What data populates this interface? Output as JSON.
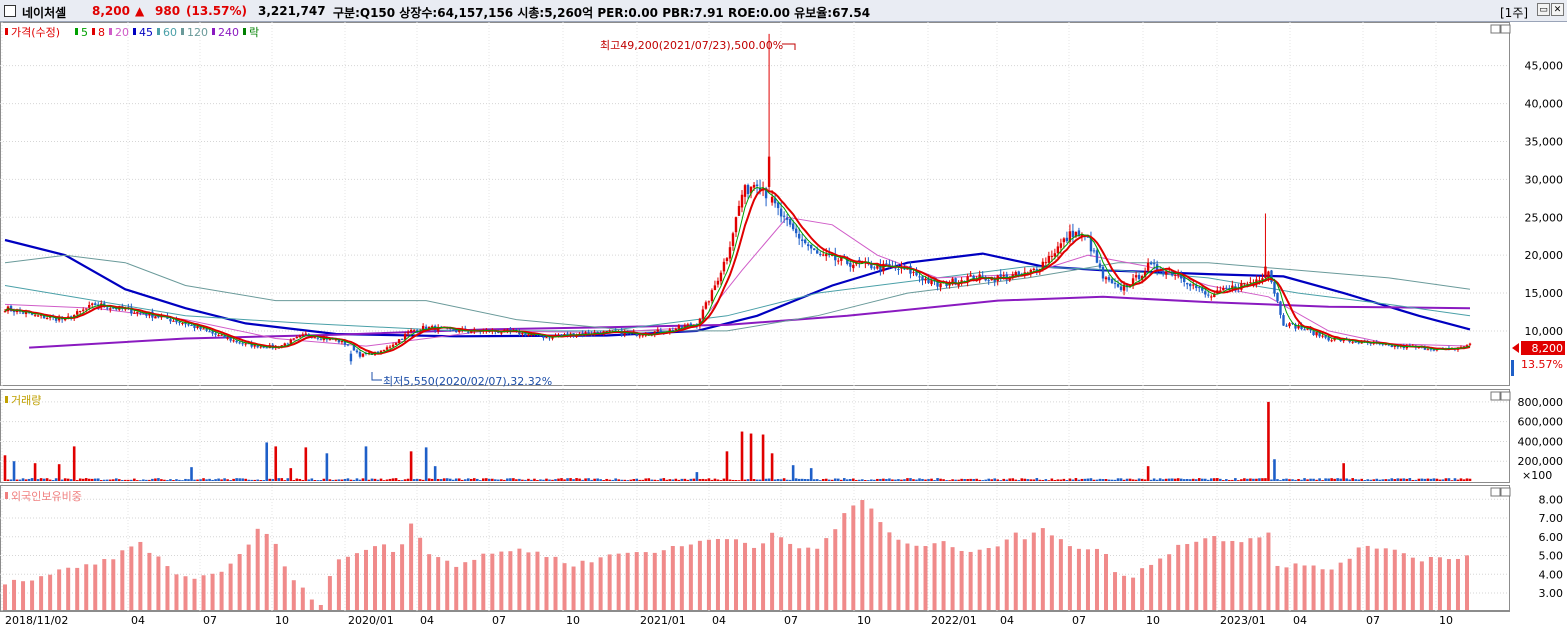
{
  "header": {
    "stock_name": "네이처셀",
    "price": "8,200",
    "change_arrow": "▲",
    "change": "980",
    "change_pct": "(13.57%)",
    "volume": "3,221,747",
    "info": "구분:Q150 상장수:64,157,156 시총:5,260억 PER:0.00 PBR:7.91 ROE:0.00 유보율:67.54",
    "period_button": "[1주]",
    "colors": {
      "up": "#e00000",
      "down": "#1e5fc8"
    }
  },
  "chart_data": [
    {
      "type": "candlestick",
      "panel": "price",
      "legend": [
        {
          "label": "가격(수정)",
          "color": "#e00000"
        },
        {
          "label": "5",
          "color": "#00a000"
        },
        {
          "label": "8",
          "color": "#e00000"
        },
        {
          "label": "20",
          "color": "#d05cc8"
        },
        {
          "label": "45",
          "color": "#0000c0"
        },
        {
          "label": "60",
          "color": "#4aa0a8"
        },
        {
          "label": "120",
          "color": "#6a9a9a"
        },
        {
          "label": "240",
          "color": "#8a1ac0"
        },
        {
          "label": "락",
          "color": "#008000"
        }
      ],
      "x_ticks": [
        "2018/11/02",
        "04",
        "07",
        "10",
        "2020/01",
        "04",
        "07",
        "10",
        "2021/01",
        "04",
        "07",
        "10",
        "2022/01",
        "04",
        "07",
        "10",
        "2023/01",
        "04",
        "07",
        "10"
      ],
      "y_ticks": [
        "45,000",
        "40,000",
        "35,000",
        "30,000",
        "25,000",
        "20,000",
        "15,000",
        "10,000"
      ],
      "ylim": [
        3000,
        50500
      ],
      "current_price_label": "8,200",
      "current_change_label": "13.57%",
      "annotations": {
        "high": "최고49,200(2021/07/23),500.00%",
        "low": "최저5,550(2020/02/07),32.32%"
      },
      "close_anchors": [
        [
          0,
          13000
        ],
        [
          10,
          12000
        ],
        [
          20,
          11500
        ],
        [
          30,
          13500
        ],
        [
          40,
          12800
        ],
        [
          50,
          12000
        ],
        [
          60,
          11000
        ],
        [
          70,
          9500
        ],
        [
          80,
          8200
        ],
        [
          90,
          7800
        ],
        [
          100,
          9500
        ],
        [
          110,
          8800
        ],
        [
          115,
          8000
        ],
        [
          118,
          6800
        ],
        [
          125,
          7200
        ],
        [
          135,
          10000
        ],
        [
          140,
          10500
        ],
        [
          150,
          10000
        ],
        [
          160,
          10000
        ],
        [
          170,
          9800
        ],
        [
          180,
          9200
        ],
        [
          190,
          9600
        ],
        [
          200,
          9800
        ],
        [
          210,
          9600
        ],
        [
          220,
          10000
        ],
        [
          230,
          11000
        ],
        [
          235,
          15000
        ],
        [
          240,
          20000
        ],
        [
          245,
          28000
        ],
        [
          250,
          30000
        ],
        [
          255,
          27000
        ],
        [
          260,
          24000
        ],
        [
          265,
          22000
        ],
        [
          270,
          20000
        ],
        [
          280,
          19000
        ],
        [
          290,
          18500
        ],
        [
          300,
          18000
        ],
        [
          310,
          16000
        ],
        [
          320,
          17000
        ],
        [
          330,
          17000
        ],
        [
          340,
          17500
        ],
        [
          345,
          19000
        ],
        [
          350,
          21000
        ],
        [
          355,
          23000
        ],
        [
          360,
          22000
        ],
        [
          365,
          17000
        ],
        [
          370,
          15500
        ],
        [
          375,
          16500
        ],
        [
          380,
          18500
        ],
        [
          390,
          17500
        ],
        [
          400,
          14500
        ],
        [
          410,
          16000
        ],
        [
          415,
          16500
        ],
        [
          420,
          18000
        ],
        [
          425,
          11000
        ],
        [
          430,
          10500
        ],
        [
          440,
          9000
        ],
        [
          450,
          8500
        ],
        [
          460,
          8000
        ],
        [
          470,
          7800
        ],
        [
          480,
          7500
        ],
        [
          487,
          8200
        ]
      ],
      "moving_averages": [
        {
          "name": "45",
          "color": "#0000c0",
          "width": 2.2,
          "points": [
            [
              0,
              22000
            ],
            [
              20,
              20000
            ],
            [
              40,
              15500
            ],
            [
              60,
              13000
            ],
            [
              80,
              11000
            ],
            [
              110,
              9600
            ],
            [
              150,
              9300
            ],
            [
              200,
              9400
            ],
            [
              230,
              10000
            ],
            [
              250,
              12000
            ],
            [
              275,
              16000
            ],
            [
              300,
              19000
            ],
            [
              325,
              20200
            ],
            [
              345,
              18500
            ],
            [
              365,
              18000
            ],
            [
              400,
              17500
            ],
            [
              425,
              17200
            ],
            [
              445,
              15000
            ],
            [
              470,
              12000
            ],
            [
              487,
              10200
            ]
          ]
        },
        {
          "name": "240",
          "color": "#8a1ac0",
          "width": 2.0,
          "points": [
            [
              8,
              7800
            ],
            [
              60,
              9000
            ],
            [
              110,
              9500
            ],
            [
              160,
              10200
            ],
            [
              200,
              10500
            ],
            [
              240,
              10800
            ],
            [
              280,
              12000
            ],
            [
              330,
              14000
            ],
            [
              365,
              14500
            ],
            [
              400,
              13800
            ],
            [
              440,
              13200
            ],
            [
              487,
              13000
            ]
          ]
        },
        {
          "name": "120",
          "color": "#6a9a9a",
          "width": 1.0,
          "points": [
            [
              0,
              19000
            ],
            [
              20,
              20000
            ],
            [
              40,
              19000
            ],
            [
              60,
              16000
            ],
            [
              90,
              14000
            ],
            [
              140,
              14000
            ],
            [
              170,
              11500
            ],
            [
              210,
              10000
            ],
            [
              240,
              10000
            ],
            [
              270,
              12000
            ],
            [
              300,
              15000
            ],
            [
              340,
              17000
            ],
            [
              370,
              19000
            ],
            [
              400,
              19000
            ],
            [
              430,
              18000
            ],
            [
              460,
              17000
            ],
            [
              487,
              15500
            ]
          ]
        },
        {
          "name": "60",
          "color": "#4aa0a8",
          "width": 1.0,
          "points": [
            [
              0,
              16000
            ],
            [
              30,
              14000
            ],
            [
              60,
              12000
            ],
            [
              100,
              11000
            ],
            [
              150,
              10000
            ],
            [
              200,
              10000
            ],
            [
              240,
              12000
            ],
            [
              270,
              15000
            ],
            [
              310,
              17000
            ],
            [
              340,
              18500
            ],
            [
              370,
              18000
            ],
            [
              400,
              17000
            ],
            [
              430,
              15000
            ],
            [
              460,
              13500
            ],
            [
              487,
              12000
            ]
          ]
        },
        {
          "name": "20",
          "color": "#d05cc8",
          "width": 1.0,
          "points": [
            [
              0,
              13500
            ],
            [
              30,
              13000
            ],
            [
              60,
              11500
            ],
            [
              90,
              9000
            ],
            [
              120,
              8000
            ],
            [
              160,
              10000
            ],
            [
              200,
              9800
            ],
            [
              230,
              10500
            ],
            [
              245,
              18000
            ],
            [
              260,
              25000
            ],
            [
              275,
              24000
            ],
            [
              290,
              20000
            ],
            [
              310,
              17000
            ],
            [
              340,
              17500
            ],
            [
              360,
              20000
            ],
            [
              380,
              18500
            ],
            [
              400,
              16000
            ],
            [
              420,
              14500
            ],
            [
              440,
              10000
            ],
            [
              460,
              8300
            ],
            [
              487,
              8000
            ]
          ]
        }
      ],
      "special_candles": [
        {
          "i": 254,
          "open": 29000,
          "close": 33000,
          "high": 49200,
          "low": 28500
        },
        {
          "i": 115,
          "open": 7000,
          "close": 6000,
          "high": 7400,
          "low": 5550
        },
        {
          "i": 419,
          "open": 17000,
          "close": 18500,
          "high": 25500,
          "low": 16500
        }
      ]
    },
    {
      "type": "bar",
      "panel": "volume",
      "title": "거래량",
      "y_ticks": [
        "800,000",
        "600,000",
        "400,000",
        "200,000"
      ],
      "ylim": [
        0,
        900000
      ],
      "unit_label": "×100",
      "spikes": [
        [
          0,
          260000
        ],
        [
          3,
          200000
        ],
        [
          10,
          180000
        ],
        [
          18,
          170000
        ],
        [
          23,
          350000
        ],
        [
          62,
          140000
        ],
        [
          87,
          390000
        ],
        [
          90,
          350000
        ],
        [
          95,
          130000
        ],
        [
          100,
          340000
        ],
        [
          107,
          280000
        ],
        [
          120,
          350000
        ],
        [
          135,
          300000
        ],
        [
          140,
          340000
        ],
        [
          143,
          150000
        ],
        [
          230,
          90000
        ],
        [
          240,
          300000
        ],
        [
          245,
          500000
        ],
        [
          248,
          480000
        ],
        [
          252,
          470000
        ],
        [
          255,
          280000
        ],
        [
          262,
          160000
        ],
        [
          268,
          130000
        ],
        [
          380,
          150000
        ],
        [
          420,
          800000
        ],
        [
          422,
          220000
        ],
        [
          445,
          180000
        ]
      ]
    },
    {
      "type": "bar",
      "panel": "foreign-ownership",
      "title": "외국인보유비중",
      "y_ticks": [
        "8.00",
        "7.00",
        "6.00",
        "5.00",
        "4.00",
        "3.00"
      ],
      "ylim": [
        2.2,
        8.6
      ],
      "level_anchors": [
        [
          0,
          3.5
        ],
        [
          10,
          3.8
        ],
        [
          20,
          4.2
        ],
        [
          30,
          4.5
        ],
        [
          40,
          5.2
        ],
        [
          45,
          5.7
        ],
        [
          50,
          5.0
        ],
        [
          55,
          4.2
        ],
        [
          60,
          3.8
        ],
        [
          70,
          4.0
        ],
        [
          80,
          5.2
        ],
        [
          85,
          6.7
        ],
        [
          90,
          5.5
        ],
        [
          95,
          3.8
        ],
        [
          100,
          3.0
        ],
        [
          105,
          2.5
        ],
        [
          110,
          4.8
        ],
        [
          120,
          5.2
        ],
        [
          125,
          5.8
        ],
        [
          130,
          5.0
        ],
        [
          135,
          6.8
        ],
        [
          140,
          5.3
        ],
        [
          150,
          4.5
        ],
        [
          160,
          5.0
        ],
        [
          170,
          5.4
        ],
        [
          180,
          5.0
        ],
        [
          190,
          4.5
        ],
        [
          200,
          5.0
        ],
        [
          210,
          5.2
        ],
        [
          220,
          5.3
        ],
        [
          230,
          5.7
        ],
        [
          240,
          6.0
        ],
        [
          250,
          5.5
        ],
        [
          255,
          6.2
        ],
        [
          260,
          5.6
        ],
        [
          265,
          5.3
        ],
        [
          270,
          5.4
        ],
        [
          275,
          6.2
        ],
        [
          280,
          7.5
        ],
        [
          285,
          8.0
        ],
        [
          290,
          7.0
        ],
        [
          295,
          6.0
        ],
        [
          300,
          5.5
        ],
        [
          310,
          5.7
        ],
        [
          320,
          5.3
        ],
        [
          330,
          5.5
        ],
        [
          335,
          6.2
        ],
        [
          340,
          5.8
        ],
        [
          345,
          6.5
        ],
        [
          350,
          6.0
        ],
        [
          355,
          5.5
        ],
        [
          360,
          5.4
        ],
        [
          365,
          5.2
        ],
        [
          370,
          4.0
        ],
        [
          375,
          3.8
        ],
        [
          380,
          4.5
        ],
        [
          390,
          5.5
        ],
        [
          400,
          6.0
        ],
        [
          410,
          5.8
        ],
        [
          420,
          6.2
        ],
        [
          422,
          4.5
        ],
        [
          430,
          4.5
        ],
        [
          440,
          4.2
        ],
        [
          450,
          5.3
        ],
        [
          460,
          5.5
        ],
        [
          470,
          4.8
        ],
        [
          487,
          5.0
        ]
      ]
    }
  ]
}
